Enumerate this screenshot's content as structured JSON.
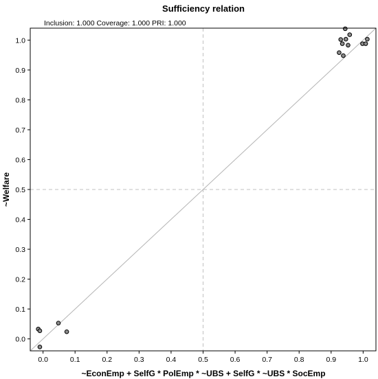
{
  "chart_data": {
    "type": "scatter",
    "title": "Sufficiency relation",
    "subtitle": "Inclusion: 1.000   Coverage: 1.000   PRI: 1.000",
    "xlabel": "~EconEmp + SelfG * PolEmp * ~UBS + SelfG * ~UBS * SocEmp",
    "ylabel": "~Welfare",
    "xlim": [
      -0.04,
      1.04
    ],
    "ylim": [
      -0.04,
      1.04
    ],
    "xticks": [
      "0.0",
      "0.1",
      "0.2",
      "0.3",
      "0.4",
      "0.5",
      "0.6",
      "0.7",
      "0.8",
      "0.9",
      "1.0"
    ],
    "yticks": [
      "0.0",
      "0.1",
      "0.2",
      "0.3",
      "0.4",
      "0.5",
      "0.6",
      "0.7",
      "0.8",
      "0.9",
      "1.0"
    ],
    "reference_lines": {
      "diagonal": true,
      "vertical": 0.5,
      "horizontal": 0.5
    },
    "points": [
      {
        "x": -0.015,
        "y": 0.033
      },
      {
        "x": -0.01,
        "y": 0.027
      },
      {
        "x": -0.01,
        "y": -0.027
      },
      {
        "x": 0.048,
        "y": 0.053
      },
      {
        "x": 0.074,
        "y": 0.024
      },
      {
        "x": 0.925,
        "y": 0.958
      },
      {
        "x": 0.93,
        "y": 1.002
      },
      {
        "x": 0.935,
        "y": 0.988
      },
      {
        "x": 0.938,
        "y": 0.948
      },
      {
        "x": 0.944,
        "y": 1.038
      },
      {
        "x": 0.946,
        "y": 1.003
      },
      {
        "x": 0.953,
        "y": 0.983
      },
      {
        "x": 0.958,
        "y": 1.018
      },
      {
        "x": 0.998,
        "y": 0.988
      },
      {
        "x": 1.008,
        "y": 0.988
      },
      {
        "x": 1.013,
        "y": 1.003
      }
    ],
    "colors": {
      "point_fill": "#8c8c8c",
      "point_stroke": "#000000",
      "diagonal": "#b4b4b4",
      "reference": "#c0c0c0"
    }
  }
}
